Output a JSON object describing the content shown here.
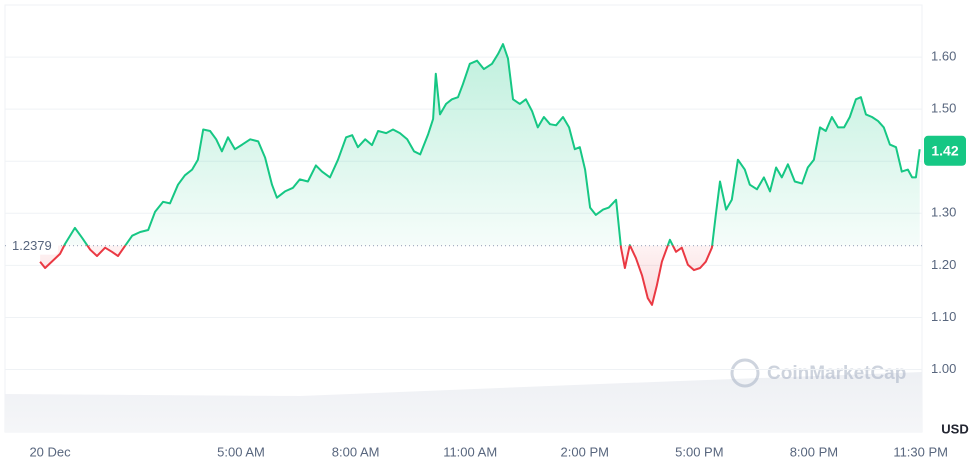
{
  "chart_data": {
    "type": "line",
    "x": [
      -0.26,
      -0.13,
      0.26,
      0.39,
      0.65,
      0.84,
      1.05,
      1.23,
      1.44,
      1.62,
      1.78,
      1.96,
      2.15,
      2.36,
      2.57,
      2.75,
      2.96,
      3.14,
      3.35,
      3.53,
      3.72,
      3.87,
      4.01,
      4.19,
      4.35,
      4.5,
      4.66,
      4.84,
      5.03,
      5.24,
      5.45,
      5.63,
      5.81,
      5.94,
      6.15,
      6.36,
      6.54,
      6.75,
      6.96,
      7.12,
      7.33,
      7.54,
      7.75,
      7.91,
      8.06,
      8.25,
      8.43,
      8.59,
      8.8,
      8.98,
      9.16,
      9.35,
      9.53,
      9.69,
      9.9,
      10.03,
      10.1,
      10.21,
      10.37,
      10.52,
      10.68,
      10.81,
      10.99,
      11.18,
      11.36,
      11.57,
      11.73,
      11.86,
      11.99,
      12.12,
      12.3,
      12.46,
      12.62,
      12.77,
      12.93,
      13.09,
      13.25,
      13.43,
      13.59,
      13.74,
      13.87,
      14.01,
      14.14,
      14.29,
      14.48,
      14.63,
      14.82,
      14.95,
      15.05,
      15.18,
      15.34,
      15.5,
      15.65,
      15.76,
      15.89,
      16.02,
      16.23,
      16.39,
      16.54,
      16.7,
      16.86,
      17.02,
      17.17,
      17.33,
      17.43,
      17.54,
      17.7,
      17.85,
      18.01,
      18.19,
      18.32,
      18.51,
      18.69,
      18.85,
      19.01,
      19.16,
      19.32,
      19.5,
      19.69,
      19.84,
      20.0,
      20.16,
      20.31,
      20.47,
      20.63,
      20.79,
      20.94,
      21.1,
      21.23,
      21.36,
      21.52,
      21.68,
      21.83,
      21.99,
      22.15,
      22.3,
      22.46,
      22.57,
      22.67,
      22.77
    ],
    "values": [
      1.207,
      1.195,
      1.222,
      1.241,
      1.272,
      1.253,
      1.23,
      1.218,
      1.234,
      1.226,
      1.218,
      1.237,
      1.257,
      1.264,
      1.268,
      1.303,
      1.322,
      1.319,
      1.355,
      1.373,
      1.384,
      1.403,
      1.461,
      1.458,
      1.442,
      1.419,
      1.446,
      1.423,
      1.432,
      1.442,
      1.438,
      1.407,
      1.355,
      1.33,
      1.342,
      1.349,
      1.365,
      1.361,
      1.392,
      1.38,
      1.369,
      1.403,
      1.446,
      1.45,
      1.427,
      1.442,
      1.431,
      1.458,
      1.454,
      1.461,
      1.454,
      1.442,
      1.419,
      1.413,
      1.452,
      1.481,
      1.568,
      1.49,
      1.51,
      1.519,
      1.523,
      1.548,
      1.587,
      1.593,
      1.577,
      1.587,
      1.606,
      1.625,
      1.597,
      1.519,
      1.51,
      1.519,
      1.496,
      1.465,
      1.485,
      1.471,
      1.469,
      1.485,
      1.465,
      1.423,
      1.427,
      1.384,
      1.311,
      1.297,
      1.307,
      1.311,
      1.326,
      1.234,
      1.195,
      1.239,
      1.214,
      1.181,
      1.137,
      1.124,
      1.162,
      1.207,
      1.249,
      1.226,
      1.234,
      1.201,
      1.191,
      1.195,
      1.207,
      1.234,
      1.297,
      1.361,
      1.307,
      1.326,
      1.403,
      1.384,
      1.355,
      1.346,
      1.369,
      1.342,
      1.388,
      1.369,
      1.394,
      1.361,
      1.357,
      1.388,
      1.403,
      1.465,
      1.458,
      1.485,
      1.465,
      1.465,
      1.485,
      1.519,
      1.523,
      1.49,
      1.485,
      1.477,
      1.465,
      1.432,
      1.427,
      1.38,
      1.384,
      1.369,
      1.369,
      1.423
    ],
    "color": "#16c784",
    "below_color": "#ea3943",
    "baseline": 1.2379,
    "current_price": 1.42,
    "xlim": [
      -1.18,
      22.83
    ],
    "xticks": [
      {
        "value": 0,
        "label": "20 Dec"
      },
      {
        "value": 5,
        "label": "5:00 AM"
      },
      {
        "value": 8,
        "label": "8:00 AM"
      },
      {
        "value": 11,
        "label": "11:00 AM"
      },
      {
        "value": 14,
        "label": "2:00 PM"
      },
      {
        "value": 17,
        "label": "5:00 PM"
      },
      {
        "value": 20,
        "label": "8:00 PM"
      },
      {
        "value": 23.5,
        "label": "11:30 PM"
      }
    ],
    "ylim": [
      0.88,
      1.7
    ],
    "yticks": [
      {
        "value": 1.0,
        "label": "1.00"
      },
      {
        "value": 1.1,
        "label": "1.10"
      },
      {
        "value": 1.2,
        "label": "1.20"
      },
      {
        "value": 1.3,
        "label": "1.30"
      },
      {
        "value": 1.4,
        "label": "1.40"
      },
      {
        "value": 1.5,
        "label": "1.50"
      },
      {
        "value": 1.6,
        "label": "1.60"
      }
    ],
    "y_unit": "USD",
    "watermark": "CoinMarketCap",
    "grid": true
  }
}
